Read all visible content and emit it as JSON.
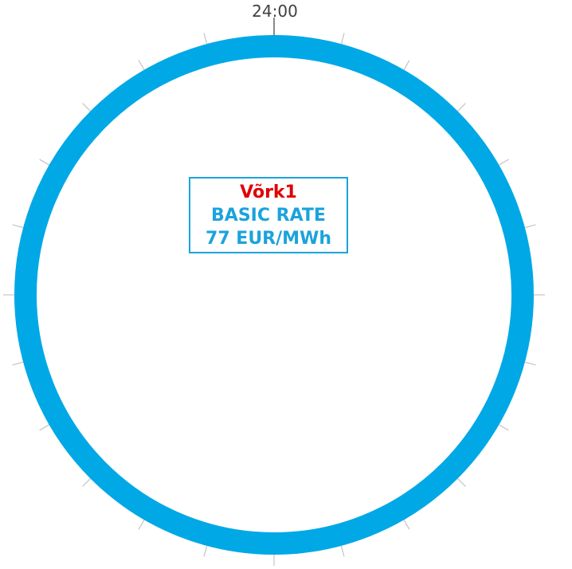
{
  "clock": {
    "top_label": "24:00",
    "ring_color": "#00a8e6",
    "tick_color": "#c8c8c8",
    "tick_count": 24
  },
  "info_box": {
    "network": "Võrk1",
    "network_color": "#e00000",
    "rate_name": "BASIC RATE",
    "rate_value": "77 EUR/MWh",
    "text_color": "#1ba3dc",
    "border_color": "#1ba3dc"
  }
}
